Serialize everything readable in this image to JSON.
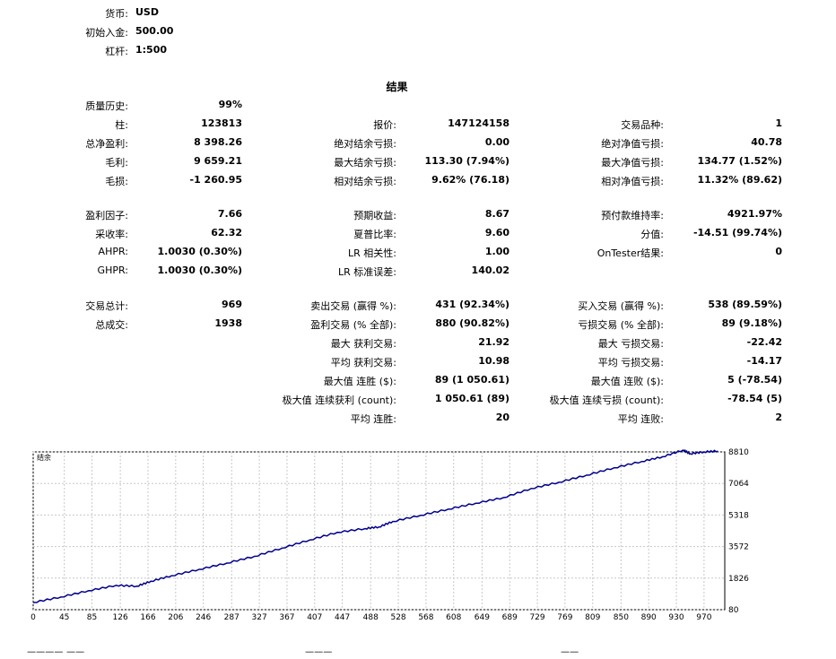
{
  "header": [
    {
      "label": "货币:",
      "value": "USD"
    },
    {
      "label": "初始入金:",
      "value": "500.00"
    },
    {
      "label": "杠杆:",
      "value": "1:500"
    }
  ],
  "section_title": "结果",
  "group1": {
    "col1": [
      {
        "label": "质量历史:",
        "value": "99%"
      },
      {
        "label": "柱:",
        "value": "123813"
      },
      {
        "label": "总净盈利:",
        "value": "8 398.26"
      },
      {
        "label": "毛利:",
        "value": "9 659.21"
      },
      {
        "label": "毛损:",
        "value": "-1 260.95"
      }
    ],
    "col2": [
      {
        "label": "报价:",
        "value": "147124158"
      },
      {
        "label": "绝对结余亏损:",
        "value": "0.00"
      },
      {
        "label": "最大结余亏损:",
        "value": "113.30 (7.94%)"
      },
      {
        "label": "相对结余亏损:",
        "value": "9.62% (76.18)"
      }
    ],
    "col3": [
      {
        "label": "交易品种:",
        "value": "1"
      },
      {
        "label": "绝对净值亏损:",
        "value": "40.78"
      },
      {
        "label": "最大净值亏损:",
        "value": "134.77 (1.52%)"
      },
      {
        "label": "相对净值亏损:",
        "value": "11.32% (89.62)"
      }
    ]
  },
  "group2": {
    "col1": [
      {
        "label": "盈利因子:",
        "value": "7.66"
      },
      {
        "label": "采收率:",
        "value": "62.32"
      },
      {
        "label": "AHPR:",
        "value": "1.0030 (0.30%)"
      },
      {
        "label": "GHPR:",
        "value": "1.0030 (0.30%)"
      }
    ],
    "col2": [
      {
        "label": "预期收益:",
        "value": "8.67"
      },
      {
        "label": "夏普比率:",
        "value": "9.60"
      },
      {
        "label": "LR 相关性:",
        "value": "1.00"
      },
      {
        "label": "LR 标准误差:",
        "value": "140.02"
      }
    ],
    "col3": [
      {
        "label": "预付款维持率:",
        "value": "4921.97%"
      },
      {
        "label": "分值:",
        "value": "-14.51 (99.74%)"
      },
      {
        "label": "OnTester结果:",
        "value": "0"
      }
    ]
  },
  "group3": {
    "col1": [
      {
        "label": "交易总计:",
        "value": "969"
      },
      {
        "label": "总成交:",
        "value": "1938"
      }
    ],
    "col2": [
      {
        "label": "卖出交易 (赢得 %):",
        "value": "431 (92.34%)"
      },
      {
        "label": "盈利交易 (% 全部):",
        "value": "880 (90.82%)"
      },
      {
        "label": "最大 获利交易:",
        "value": "21.92"
      },
      {
        "label": "平均 获利交易:",
        "value": "10.98"
      },
      {
        "label": "最大值 连胜 ($):",
        "value": "89 (1 050.61)"
      },
      {
        "label": "极大值 连续获利 (count):",
        "value": "1 050.61 (89)"
      },
      {
        "label": "平均 连胜:",
        "value": "20"
      }
    ],
    "col3": [
      {
        "label": "买入交易 (赢得 %):",
        "value": "538 (89.59%)"
      },
      {
        "label": "亏损交易 (% 全部):",
        "value": "89 (9.18%)"
      },
      {
        "label": "最大 亏损交易:",
        "value": "-22.42"
      },
      {
        "label": "平均 亏损交易:",
        "value": "-14.17"
      },
      {
        "label": "最大值 连败 ($):",
        "value": "5 (-78.54)"
      },
      {
        "label": "极大值 连续亏损 (count):",
        "value": "-78.54 (5)"
      },
      {
        "label": "平均 连败:",
        "value": "2"
      }
    ]
  },
  "chart_data": {
    "type": "line",
    "title": "结余",
    "x_ticks": [
      0,
      45,
      85,
      126,
      166,
      206,
      246,
      287,
      327,
      367,
      407,
      447,
      488,
      528,
      568,
      608,
      649,
      689,
      729,
      769,
      809,
      850,
      890,
      930,
      970
    ],
    "y_ticks": [
      80,
      1826,
      3572,
      5318,
      7064,
      8810
    ],
    "xlim": [
      0,
      1000
    ],
    "ylim": [
      80,
      8810
    ],
    "grid": true,
    "line_color": "#00008b",
    "series": [
      {
        "x": [
          0,
          40,
          80,
          120,
          150,
          170,
          200,
          240,
          280,
          320,
          360,
          400,
          440,
          480,
          500,
          520,
          560,
          600,
          640,
          680,
          720,
          760,
          800,
          840,
          880,
          910,
          940,
          950,
          970,
          990
        ],
        "values": [
          480,
          780,
          1130,
          1430,
          1380,
          1650,
          1960,
          2310,
          2660,
          3030,
          3490,
          3940,
          4360,
          4570,
          4660,
          4960,
          5300,
          5640,
          5970,
          6280,
          6780,
          7130,
          7520,
          7930,
          8280,
          8540,
          8910,
          8710,
          8810,
          8860
        ]
      }
    ]
  },
  "bottom_partial": [
    "ᅳᅳᅳᅳ ᅳᅳ",
    "ᅳᅳᅳ",
    "ᅳᅳ"
  ]
}
